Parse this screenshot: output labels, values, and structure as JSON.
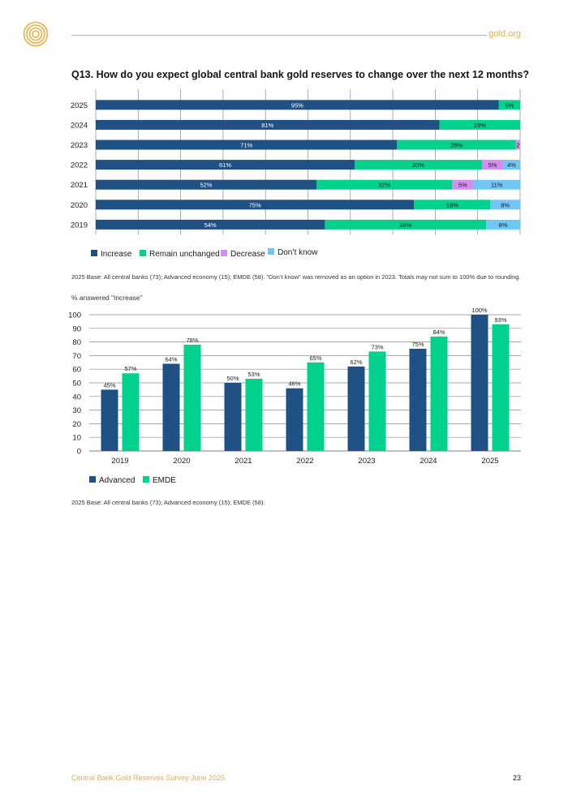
{
  "header": {
    "site": "gold.org"
  },
  "question_title": "Q13. How do you expect global central bank gold reserves to change over the next 12 months?",
  "colors": {
    "increase": "#1f5184",
    "remain": "#00d18c",
    "decrease": "#d68df0",
    "dont_know": "#6fc6f5",
    "gold": "#e6b04a",
    "grid": "#8a8a8a"
  },
  "chart_data": [
    {
      "type": "bar",
      "orientation": "horizontal",
      "stacked": true,
      "title": "Q13. How do you expect global central bank gold reserves to change over the next 12 months?",
      "categories": [
        "2025",
        "2024",
        "2023",
        "2022",
        "2021",
        "2020",
        "2019"
      ],
      "series": [
        {
          "name": "Increase",
          "values": [
            95,
            81,
            71,
            61,
            52,
            75,
            54
          ],
          "labels": [
            "95%",
            "81%",
            "71%",
            "61%",
            "52%",
            "75%",
            "54%"
          ]
        },
        {
          "name": "Remain unchanged",
          "values": [
            5,
            19,
            28,
            30,
            32,
            18,
            38
          ],
          "labels": [
            "5%",
            "19%",
            "28%",
            "30%",
            "32%",
            "18%",
            "38%"
          ]
        },
        {
          "name": "Decrease",
          "values": [
            0,
            0,
            2,
            5,
            5,
            0,
            0
          ],
          "labels": [
            "",
            "",
            "2",
            "5%",
            "5%",
            "",
            ""
          ]
        },
        {
          "name": "Don't know",
          "values": [
            0,
            0,
            0,
            4,
            11,
            8,
            8
          ],
          "labels": [
            "",
            "",
            "",
            "4%",
            "11%",
            "8%",
            "8%"
          ]
        }
      ],
      "xlim": [
        0,
        100
      ],
      "legend": "bottom-left"
    },
    {
      "type": "bar",
      "title": "% answered “Increase”",
      "categories": [
        "2019",
        "2020",
        "2021",
        "2022",
        "2023",
        "2024",
        "2025"
      ],
      "series": [
        {
          "name": "Advanced",
          "values": [
            45,
            64,
            50,
            46,
            62,
            75,
            100
          ],
          "labels": [
            "45%",
            "64%",
            "50%",
            "46%",
            "62%",
            "75%",
            "100%"
          ]
        },
        {
          "name": "EMDE",
          "values": [
            57,
            78,
            53,
            65,
            73,
            84,
            93
          ],
          "labels": [
            "57%",
            "78%",
            "53%",
            "65%",
            "73%",
            "84%",
            "93%"
          ]
        }
      ],
      "ylim": [
        0,
        100
      ],
      "yticks": [
        "0",
        "10",
        "20",
        "30",
        "40",
        "50",
        "60",
        "70",
        "80",
        "90",
        "100"
      ],
      "grid": true,
      "legend": "bottom-left"
    }
  ],
  "legend1": [
    "Increase",
    "Remain unchanged",
    "Decrease",
    "Don’t know"
  ],
  "note1": "2025 Base: All central banks (73); Advanced economy (15); EMDE (58). “Don’t know” was removed as an option in 2023. Totals may not sum to 100% due to rounding.",
  "chart2_ytitle": "% answered “Increase”",
  "legend2": [
    "Advanced",
    "EMDE"
  ],
  "note2": "2025 Base: All central banks (73); Advanced economy (15); EMDE (58).",
  "footer": {
    "title": "Central Bank Gold Reserves Survey June 2025",
    "page": "23"
  }
}
